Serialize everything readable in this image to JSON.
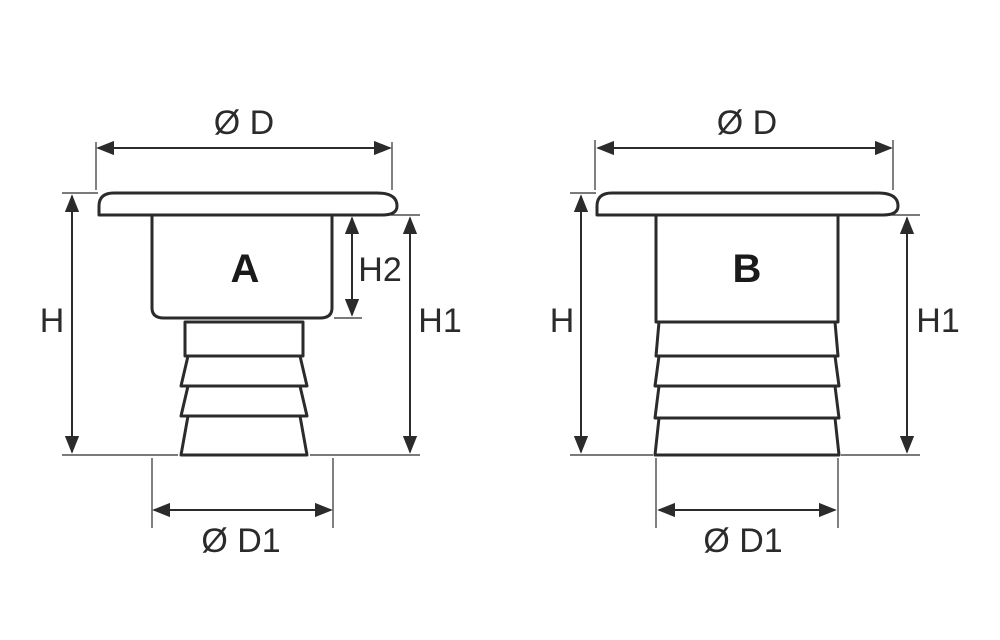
{
  "figure_a": {
    "letter": "A",
    "label_top_diameter": "Ø D",
    "label_bottom_diameter": "Ø D1",
    "label_height": "H",
    "label_height_1": "H1",
    "label_height_2": "H2"
  },
  "figure_b": {
    "letter": "B",
    "label_top_diameter": "Ø D",
    "label_bottom_diameter": "Ø D1",
    "label_height": "H",
    "label_height_1": "H1"
  },
  "colors": {
    "line": "#2b2b2b",
    "background": "#ffffff"
  }
}
